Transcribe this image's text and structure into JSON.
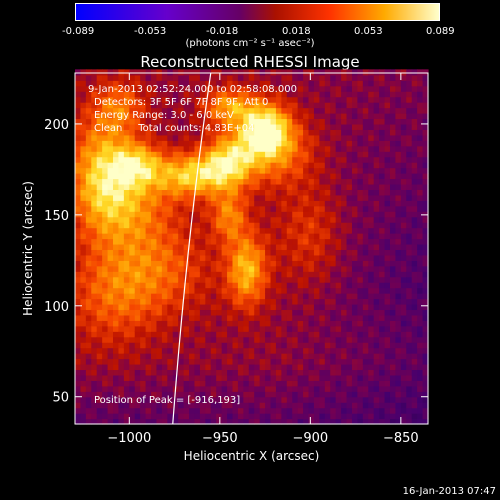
{
  "colorbar": {
    "ticks": [
      "-0.089",
      "-0.053",
      "-0.018",
      "0.018",
      "0.053",
      "0.089"
    ],
    "units": "(photons cm⁻² s⁻¹ asec⁻²)",
    "min": -0.089,
    "max": 0.089
  },
  "chart_data": {
    "type": "heatmap",
    "title": "Reconstructed RHESSI Image",
    "xlabel": "Heliocentric X (arcsec)",
    "ylabel": "Heliocentric Y (arcsec)",
    "xlim": [
      -1030,
      -835
    ],
    "ylim": [
      35,
      228
    ],
    "xticks": [
      -1000,
      -950,
      -900,
      -850
    ],
    "yticks": [
      50,
      100,
      150,
      200
    ],
    "xtick_labels": [
      "−1000",
      "−950",
      "−900",
      "−850"
    ],
    "ytick_labels": [
      "50",
      "100",
      "150",
      "200"
    ],
    "annotations": [
      "9-Jan-2013 02:52:24.000 to 02:58:08.000",
      "Detectors: 3F 5F 6F 7F 8F 9F, Att 0",
      "Energy Range: 3.0 - 6.0 keV",
      "Clean     Total counts: 4.83E+04"
    ],
    "peak_label": "Position of Peak = [-916,193]",
    "peak": [
      -916,
      193
    ],
    "colormap": "RHESSI heat (purple-red-orange-yellow)",
    "limb_line": true
  },
  "footer": "16-Jan-2013 07:47"
}
